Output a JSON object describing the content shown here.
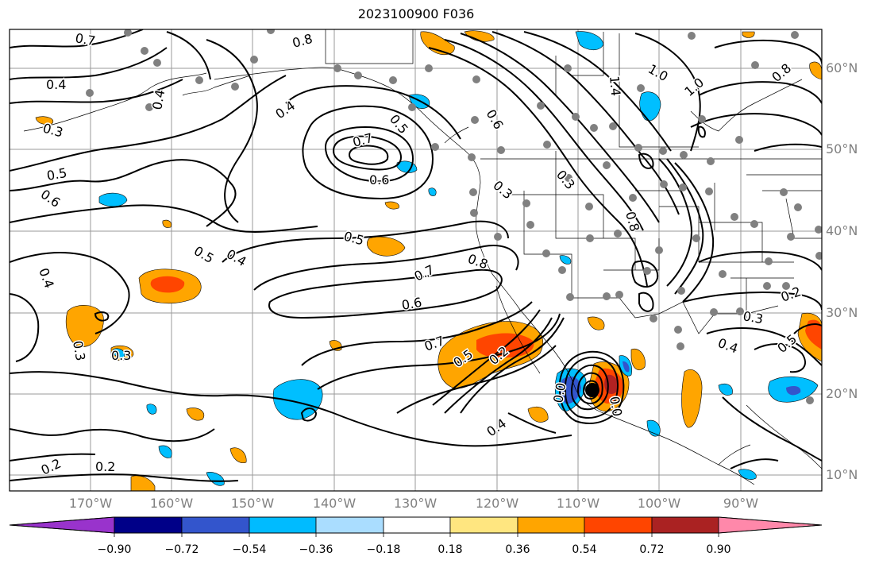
{
  "title": "2023100900 F036",
  "lat_labels": [
    "60°N",
    "50°N",
    "40°N",
    "30°N",
    "20°N",
    "10°N"
  ],
  "lon_labels": [
    "170°W",
    "160°W",
    "150°W",
    "140°W",
    "130°W",
    "120°W",
    "110°W",
    "100°W",
    "90°W"
  ],
  "contour_labels": [
    "0.7",
    "0.8",
    "0.4",
    "0.3",
    "0.4",
    "0.7",
    "0.4",
    "0.5",
    "0.6",
    "0.6",
    "0.4",
    "0.5",
    "0.4",
    "0.5",
    "0.7",
    "0.8",
    "0.6",
    "0.7",
    "0.5",
    "0.2",
    "0.3",
    "0.3",
    "0.6",
    "0.5",
    "0.3",
    "0.8",
    "1.0",
    "1.0",
    "1.4",
    "0.8",
    "0.3",
    "0.4",
    "0.3",
    "0.5",
    "0.2",
    "0.4",
    "0.2",
    "0.2",
    "0.0",
    "0.0"
  ],
  "colorbar": {
    "ticks": [
      "−0.90",
      "−0.72",
      "−0.54",
      "−0.36",
      "−0.18",
      "0.18",
      "0.36",
      "0.54",
      "0.72",
      "0.90"
    ],
    "colors": [
      "#9933cc",
      "#000088",
      "#3355cc",
      "#00bbff",
      "#aaddff",
      "#ffffff",
      "#ffe680",
      "#ffa500",
      "#ff4500",
      "#aa2222",
      "#ff88aa"
    ]
  },
  "colors": {
    "orange": "#ffa500",
    "red": "#ff4500",
    "darkred": "#b22222",
    "lightblue": "#00bfff",
    "blue": "#3355cc",
    "station_dot": "#808080"
  },
  "marker": "storm-center"
}
